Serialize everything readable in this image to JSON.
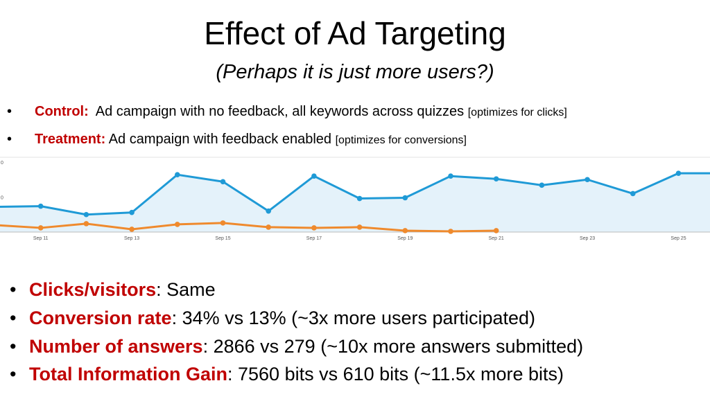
{
  "slide": {
    "title": "Effect of Ad Targeting",
    "subtitle": "(Perhaps it is just more users?)"
  },
  "top_bullets": [
    {
      "label": "Control:",
      "text": "Ad campaign with no feedback, all keywords across quizzes",
      "note": "[optimizes for clicks]"
    },
    {
      "label": "Treatment:",
      "text": "Ad campaign with feedback enabled",
      "note": "[optimizes for conversions]"
    }
  ],
  "bottom_bullets": [
    {
      "label": "Clicks/visitors",
      "text": ": Same"
    },
    {
      "label": "Conversion rate",
      "text": ": 34% vs 13% (~3x more users participated)"
    },
    {
      "label": "Number of answers",
      "text": ": 2866 vs 279 (~10x more answers submitted)"
    },
    {
      "label": "Total Information Gain",
      "text": ": 7560 bits vs 610 bits (~11.5x more bits)"
    }
  ],
  "bullet_symbol": "•",
  "colors": {
    "accent_red": "#c00000",
    "treatment_line": "#1f9ad6",
    "treatment_fill": "#e4f2fa",
    "control_line": "#ef8a2d",
    "axis": "#bbbbbb",
    "tick_text": "#555555"
  },
  "chart_data": {
    "type": "line",
    "x": [
      "Sep 10",
      "Sep 11",
      "Sep 12",
      "Sep 13",
      "Sep 14",
      "Sep 15",
      "Sep 16",
      "Sep 17",
      "Sep 18",
      "Sep 19",
      "Sep 20",
      "Sep 21",
      "Sep 22",
      "Sep 23",
      "Sep 24",
      "Sep 25",
      "Sep 26"
    ],
    "xtick_labels": [
      "Sep 11",
      "Sep 13",
      "Sep 15",
      "Sep 17",
      "Sep 19",
      "Sep 21",
      "Sep 23",
      "Sep 25"
    ],
    "ytick_labels": [
      "0",
      "0"
    ],
    "ylim": [
      0,
      100
    ],
    "series": [
      {
        "key": "treatment",
        "values": [
          36,
          37,
          25,
          28,
          82,
          72,
          30,
          80,
          48,
          49,
          80,
          76,
          67,
          75,
          55,
          84,
          84
        ]
      },
      {
        "key": "control",
        "values": [
          10,
          6,
          12,
          4,
          11,
          13,
          7,
          6,
          7,
          2,
          1,
          2,
          null,
          null,
          null,
          null,
          null
        ]
      }
    ],
    "grid": false,
    "legend": "none"
  }
}
